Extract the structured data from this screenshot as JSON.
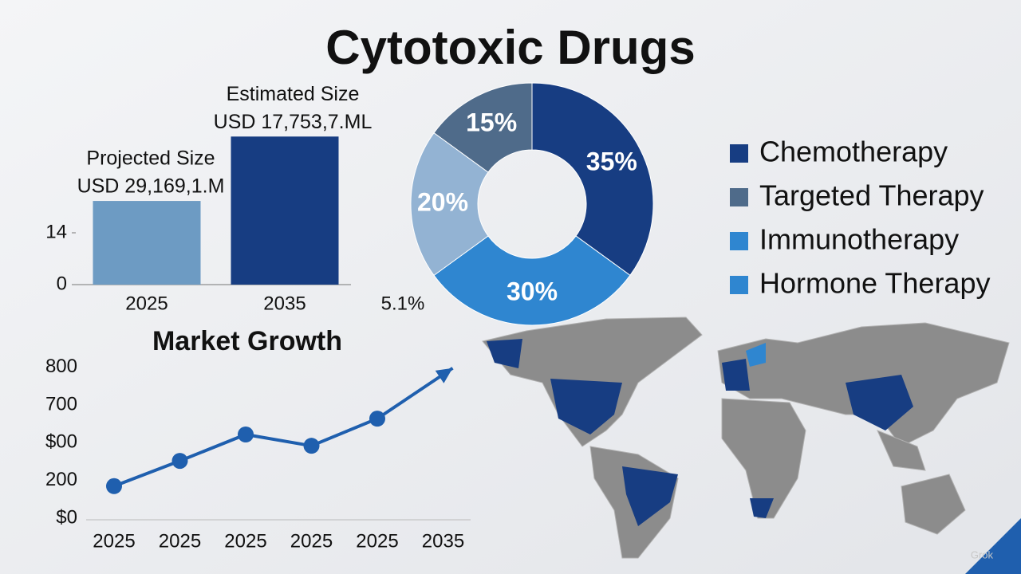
{
  "title": "Cytotoxic Drugs",
  "chart_data": [
    {
      "type": "bar",
      "categories": [
        "2025",
        "2035"
      ],
      "values": [
        22.6,
        40
      ],
      "colors": [
        "#6d9bc3",
        "#173d82"
      ],
      "bar_captions": [
        [
          "Projected Size",
          "USD 29,169,1.M"
        ],
        [
          "Estimated Size",
          "USD 17,753,7.ML"
        ]
      ],
      "ylim": [
        0,
        42
      ],
      "yticks": [
        0,
        14
      ],
      "annotation": "5.1%"
    },
    {
      "type": "pie",
      "donut": true,
      "values": [
        35,
        30,
        20,
        15
      ],
      "value_labels": [
        "35%",
        "30%",
        "20%",
        "15%"
      ],
      "colors": [
        "#173d82",
        "#2f86d0",
        "#93b3d3",
        "#4f6b8a"
      ],
      "legend": [
        "Chemotherapy",
        "Targeted Therapy",
        "Immunotherapy",
        "Hormone Therapy"
      ],
      "legend_colors": [
        "#173d82",
        "#4f6b8a",
        "#2f86d0",
        "#2f86d0"
      ]
    },
    {
      "type": "line",
      "title": "Market Growth",
      "categories": [
        "2025",
        "2025",
        "2025",
        "2025",
        "2025",
        "2035"
      ],
      "values": [
        0.85,
        1.52,
        2.22,
        1.92,
        2.64,
        3.98
      ],
      "color": "#1f5fae",
      "ylim": [
        0,
        4
      ],
      "ylabels": [
        "$0",
        "200",
        "$00",
        "700",
        "800"
      ]
    }
  ],
  "watermark": "Grok"
}
